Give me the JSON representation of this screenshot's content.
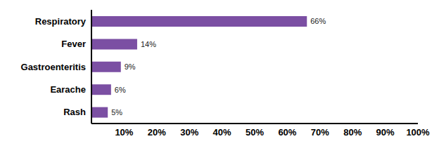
{
  "chart_data": {
    "type": "bar",
    "orientation": "horizontal",
    "categories": [
      "Respiratory",
      "Fever",
      "Gastroenteritis",
      "Earache",
      "Rash"
    ],
    "values": [
      66,
      14,
      9,
      6,
      5
    ],
    "value_labels": [
      "66%",
      "14%",
      "9%",
      "6%",
      "5%"
    ],
    "data_labels": true,
    "color": "#7b4fa3",
    "xlim": [
      0,
      100
    ],
    "xticks": [
      {
        "value": 10,
        "label": "10%"
      },
      {
        "value": 20,
        "label": "20%"
      },
      {
        "value": 30,
        "label": "30%"
      },
      {
        "value": 40,
        "label": "40%"
      },
      {
        "value": 50,
        "label": "50%"
      },
      {
        "value": 60,
        "label": "60%"
      },
      {
        "value": 70,
        "label": "70%"
      },
      {
        "value": 80,
        "label": "80%"
      },
      {
        "value": 90,
        "label": "90%"
      },
      {
        "value": 100,
        "label": "100%"
      }
    ],
    "grid": false
  }
}
